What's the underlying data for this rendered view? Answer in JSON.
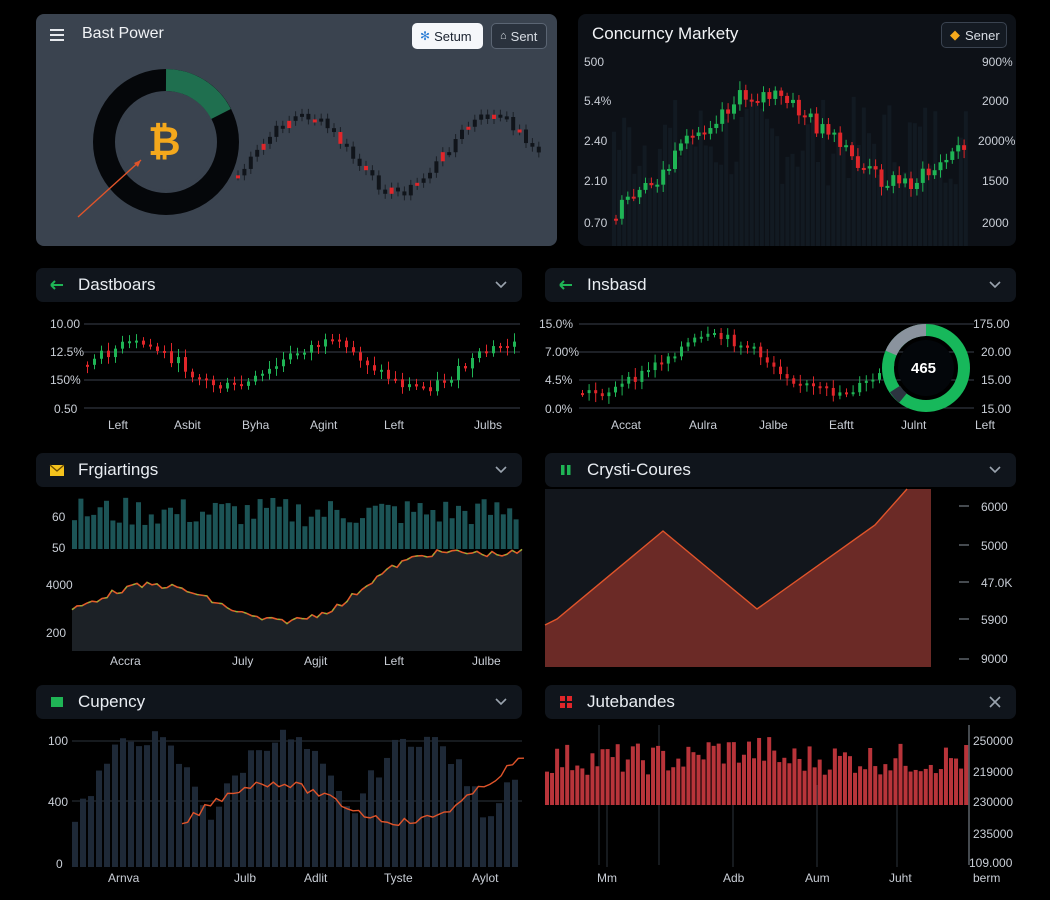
{
  "colors": {
    "up": "#1fb455",
    "down": "#e0262a",
    "panel1": "#3a434f",
    "panel": "#0d1117",
    "area": "#6b2a26"
  },
  "panel1": {
    "title": "Bast Power",
    "menu_icon": "hamburger-icon",
    "btn_setup": "Setum",
    "btn_sort": "Sent",
    "donut_center_icon": "bitcoin-icon"
  },
  "panel2": {
    "title": "Concurncy Markety",
    "btn": "Sener",
    "y_left": [
      "500",
      "5.4%",
      "2.40",
      "2.10",
      "0.70"
    ],
    "y_right": [
      "900%",
      "2000",
      "2000%",
      "1500",
      "2000"
    ]
  },
  "panel3": {
    "title": "Dastboars",
    "y_left": [
      "10.00",
      "12.5%",
      "150%",
      "0.50"
    ],
    "x": [
      "Left",
      "Asbit",
      "Byha",
      "Agint",
      "Left",
      "Julbs"
    ]
  },
  "panel4": {
    "title": "Insbasd",
    "y_left": [
      "15.0%",
      "7.00%",
      "4.5%",
      "0.0%"
    ],
    "y_right": [
      "175.00",
      "20.00",
      "15.00",
      "15.00"
    ],
    "x": [
      "Accat",
      "Aulra",
      "Jalbe",
      "Eaftt",
      "Julnt",
      "Left"
    ],
    "gauge_value": "465"
  },
  "panel5": {
    "title": "Frgiartings",
    "y_left": [
      "60",
      "50",
      "4000",
      "200"
    ],
    "x": [
      "Accra",
      "July",
      "Agjit",
      "Left",
      "Julbe"
    ]
  },
  "panel6": {
    "title": "Crysti-Coures",
    "y_right": [
      "6000",
      "5000",
      "47.0K",
      "5900",
      "9000"
    ]
  },
  "panel7": {
    "title": "Cupency",
    "y_left": [
      "100",
      "400",
      "0"
    ],
    "x": [
      "Arnva",
      "Julb",
      "Adlit",
      "Tyste",
      "Aylot"
    ]
  },
  "panel8": {
    "title": "Jutebandes",
    "y_right": [
      "250000",
      "219000",
      "230000",
      "235000",
      "109.000"
    ],
    "x": [
      "Mm",
      "Adb",
      "Aum",
      "Juht",
      "berm"
    ]
  }
}
